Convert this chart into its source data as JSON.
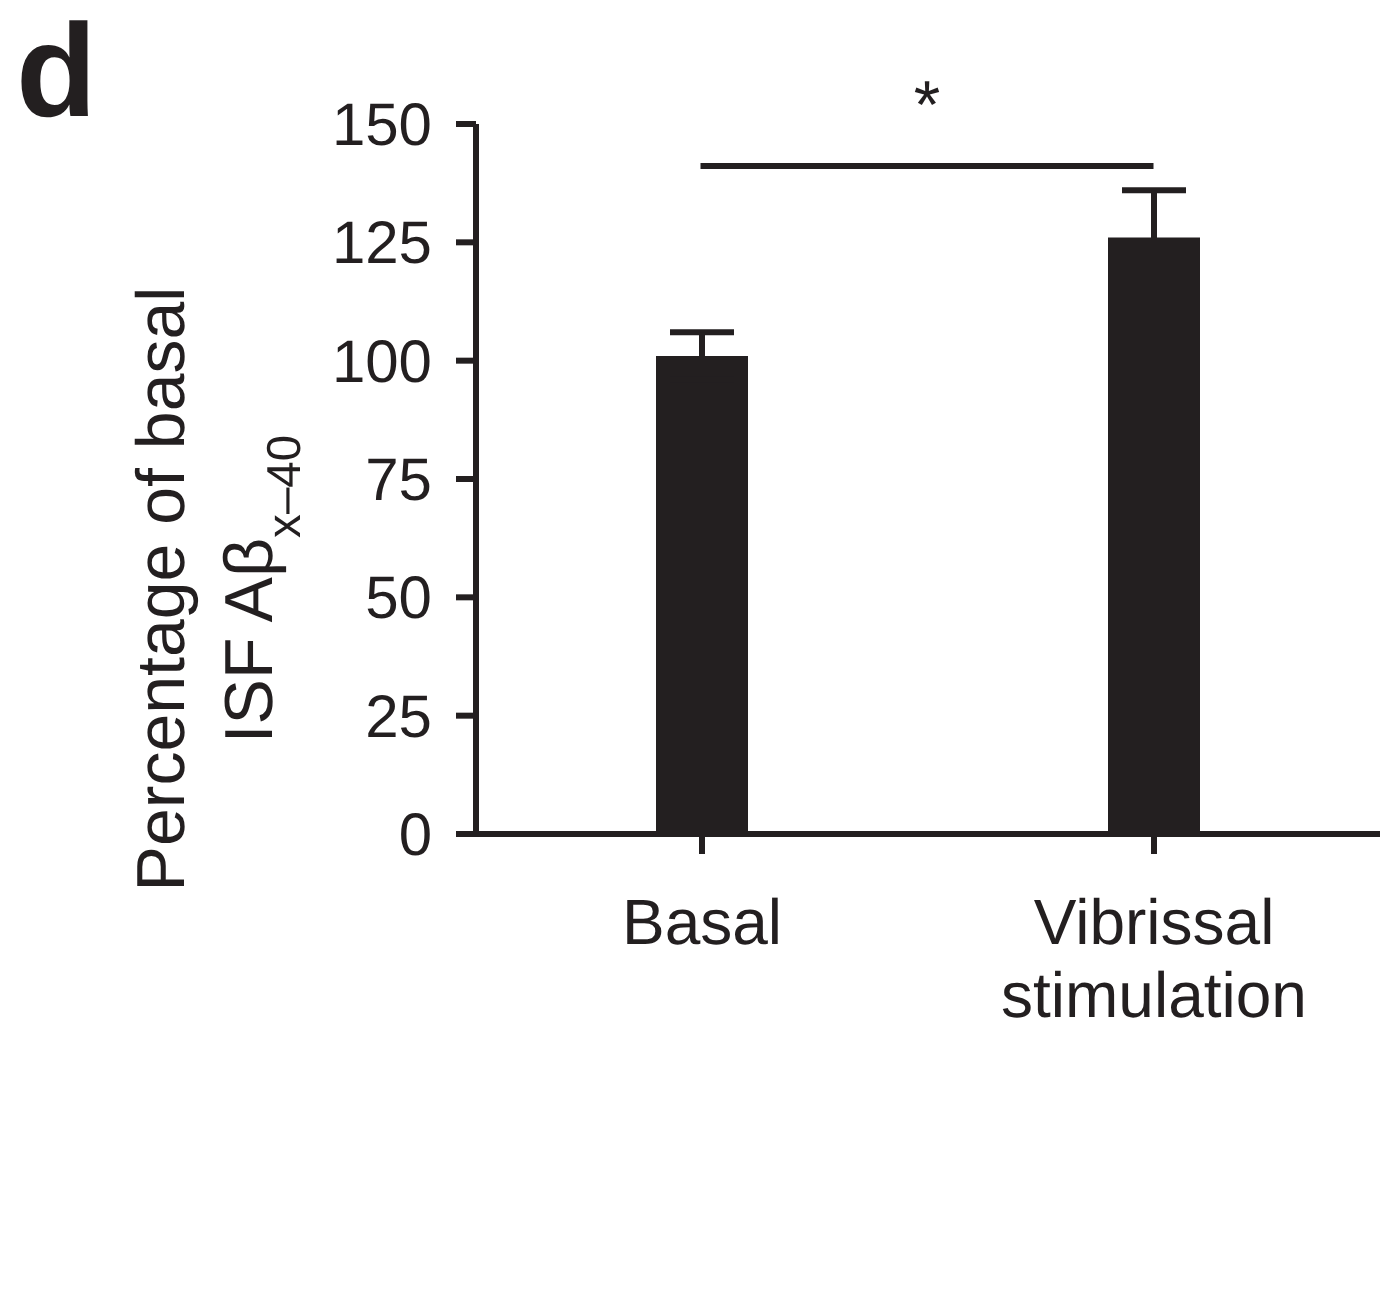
{
  "chart_data": {
    "type": "bar",
    "categories": [
      "Basal",
      "Vibrissal\nstimulation"
    ],
    "values": [
      101,
      126
    ],
    "errors": [
      5,
      10
    ],
    "color": "#231f20",
    "ylabel": "Percentage of basal\nISF Aβ$_{x–40}$",
    "ylim": [
      0,
      150
    ],
    "yticks": [
      0,
      25,
      50,
      75,
      100,
      125,
      150
    ],
    "annotations": [
      "d",
      "*"
    ]
  }
}
